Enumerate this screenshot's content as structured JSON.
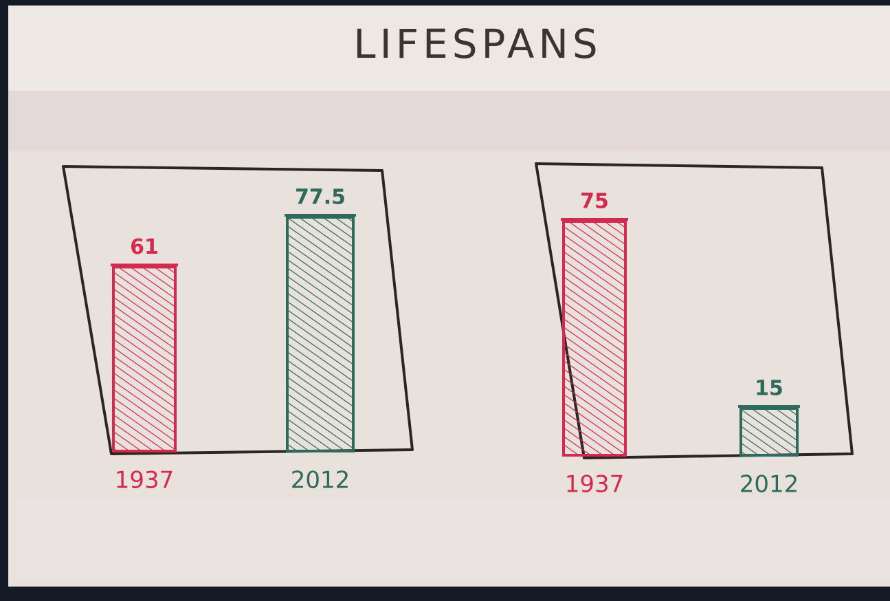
{
  "title": "LIFESPANS",
  "chart_data": [
    {
      "type": "bar",
      "categories": [
        "1937",
        "2012"
      ],
      "values": [
        61,
        77.5
      ],
      "colors": [
        "#d42a4f",
        "#2f6b5c"
      ]
    },
    {
      "type": "bar",
      "categories": [
        "1937",
        "2012"
      ],
      "values": [
        75,
        15
      ],
      "colors": [
        "#d42a4f",
        "#2f6b5c"
      ]
    }
  ]
}
